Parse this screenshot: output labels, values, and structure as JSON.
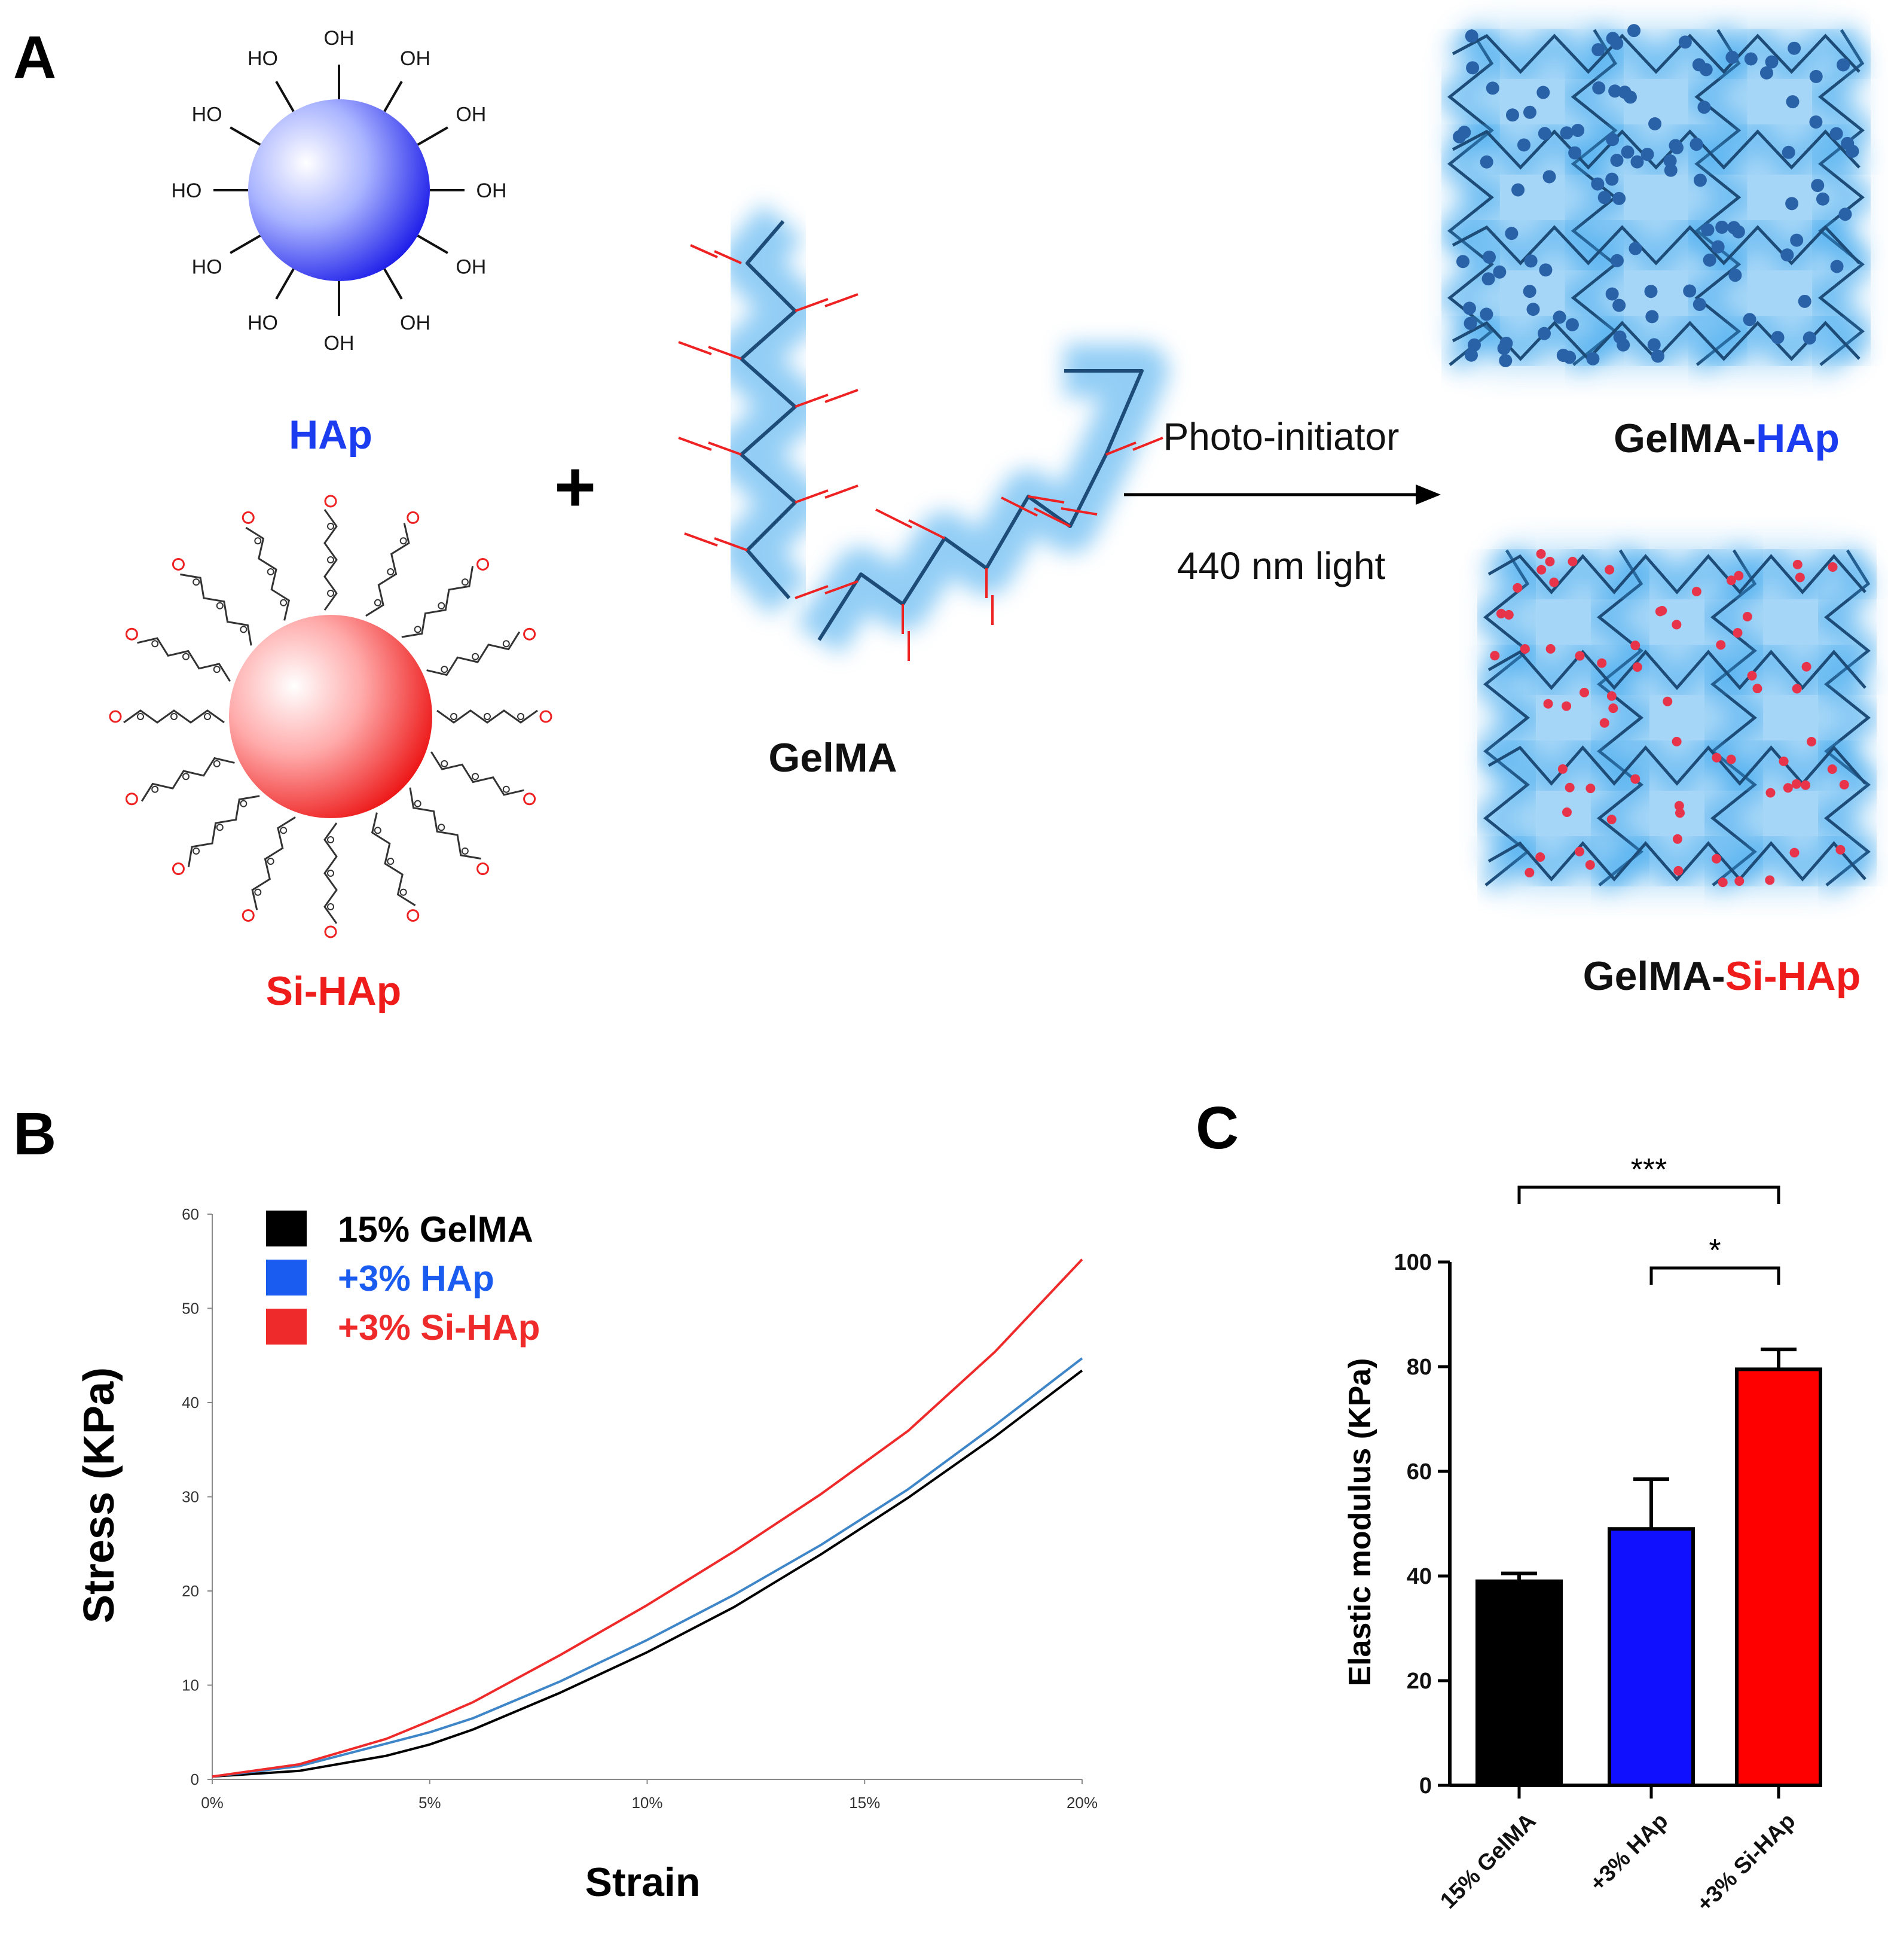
{
  "panelA": {
    "letter": "A",
    "hap_label": "HAp",
    "sihap_label": "Si-HAp",
    "plus": "+",
    "gelma_label": "GelMA",
    "arrow_top": "Photo-initiator",
    "arrow_bottom": "440 nm light",
    "product1_prefix": "GelMA-",
    "product1_suffix": "HAp",
    "product2_prefix": "GelMA-",
    "product2_suffix": "Si-HAp",
    "oh": "OH",
    "ho": "HO",
    "colors": {
      "hap": "#1c3cf0",
      "sihap": "#ef1c1c",
      "glow": "#3aa6ee",
      "chain": "#1e4c78"
    }
  },
  "chart_data": [
    {
      "type": "line",
      "panel": "B",
      "xlabel": "Strain",
      "ylabel": "Stress (KPa)",
      "xlim": [
        0,
        20
      ],
      "ylim": [
        0,
        60
      ],
      "x_ticks": [
        0,
        5,
        10,
        15,
        20
      ],
      "x_tick_labels": [
        "0%",
        "5%",
        "10%",
        "15%",
        "20%"
      ],
      "y_ticks": [
        0,
        10,
        20,
        30,
        40,
        50,
        60
      ],
      "y_tick_labels": [
        "0",
        "10",
        "20",
        "30",
        "40",
        "50",
        "60"
      ],
      "grid": false,
      "legend_position": "top-left",
      "x": [
        0,
        2,
        4,
        5,
        6,
        8,
        10,
        12,
        14,
        16,
        18,
        20
      ],
      "series": [
        {
          "name": "15% GelMA",
          "color": "#000000",
          "values": [
            0.3,
            0.9,
            2.5,
            3.7,
            5.3,
            9.2,
            13.5,
            18.3,
            23.9,
            29.9,
            36.4,
            43.4
          ]
        },
        {
          "name": "+3% HAp",
          "color": "#3f86c8",
          "values": [
            0.3,
            1.4,
            3.8,
            5.0,
            6.5,
            10.4,
            14.8,
            19.6,
            24.9,
            30.8,
            37.6,
            44.7
          ]
        },
        {
          "name": "+3% Si-HAp",
          "color": "#ee2a2a",
          "values": [
            0.3,
            1.6,
            4.3,
            6.2,
            8.2,
            13.2,
            18.5,
            24.2,
            30.3,
            37.0,
            45.4,
            55.2
          ]
        }
      ]
    },
    {
      "type": "bar",
      "panel": "C",
      "ylabel": "Elastic modulus (KPa)",
      "ylim": [
        0,
        100
      ],
      "y_ticks": [
        0,
        20,
        40,
        60,
        80,
        100
      ],
      "y_tick_labels": [
        "0",
        "20",
        "40",
        "60",
        "80",
        "100"
      ],
      "categories": [
        "15% GelMA",
        "+3% HAp",
        "+3% Si-HAp"
      ],
      "values": [
        39,
        49,
        79.5
      ],
      "errors": [
        1.5,
        9.5,
        3.8
      ],
      "colors": [
        "#000000",
        "#1010ff",
        "#ff0000"
      ],
      "significance": [
        {
          "from": 0,
          "to": 2,
          "label": "***"
        },
        {
          "from": 1,
          "to": 2,
          "label": "*"
        }
      ]
    }
  ],
  "panel_letters": {
    "b": "B",
    "c": "C"
  }
}
